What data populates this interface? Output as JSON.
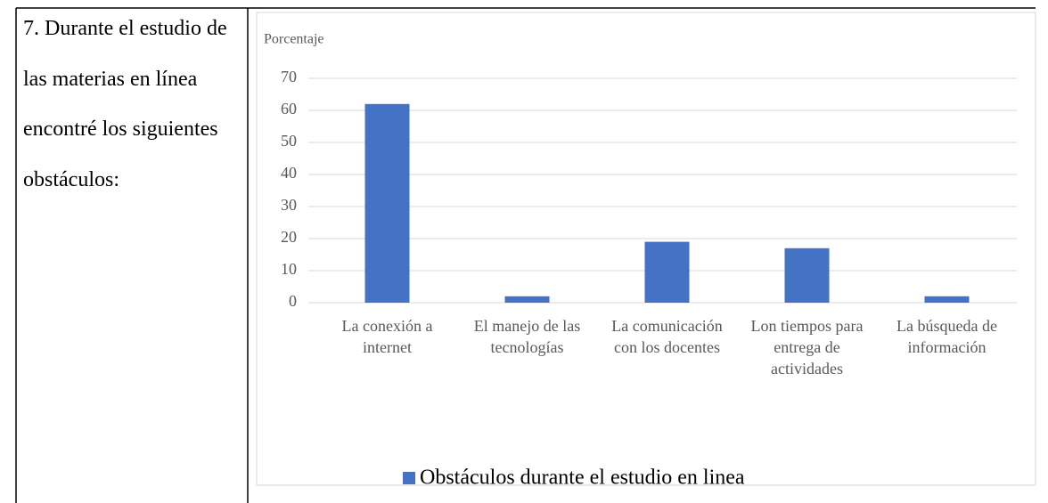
{
  "table": {
    "question": "7. Durante el estudio de las materias en línea encontré los siguientes obstáculos:"
  },
  "chart_data": {
    "type": "bar",
    "y_label": "Porcentaje",
    "categories": [
      "La conexión a internet",
      "El manejo de las tecnologías",
      "La comunicación con los docentes",
      "Lon tiempos para entrega de actividades",
      "La búsqueda de información"
    ],
    "series": [
      {
        "name": "Obstáculos durante el estudio en linea",
        "color": "#4472c4",
        "values": [
          62,
          2,
          19,
          17,
          2
        ]
      }
    ],
    "ylim": [
      0,
      70
    ],
    "yticks": [
      0,
      10,
      20,
      30,
      40,
      50,
      60,
      70
    ],
    "grid": true,
    "legend": "bottom"
  }
}
